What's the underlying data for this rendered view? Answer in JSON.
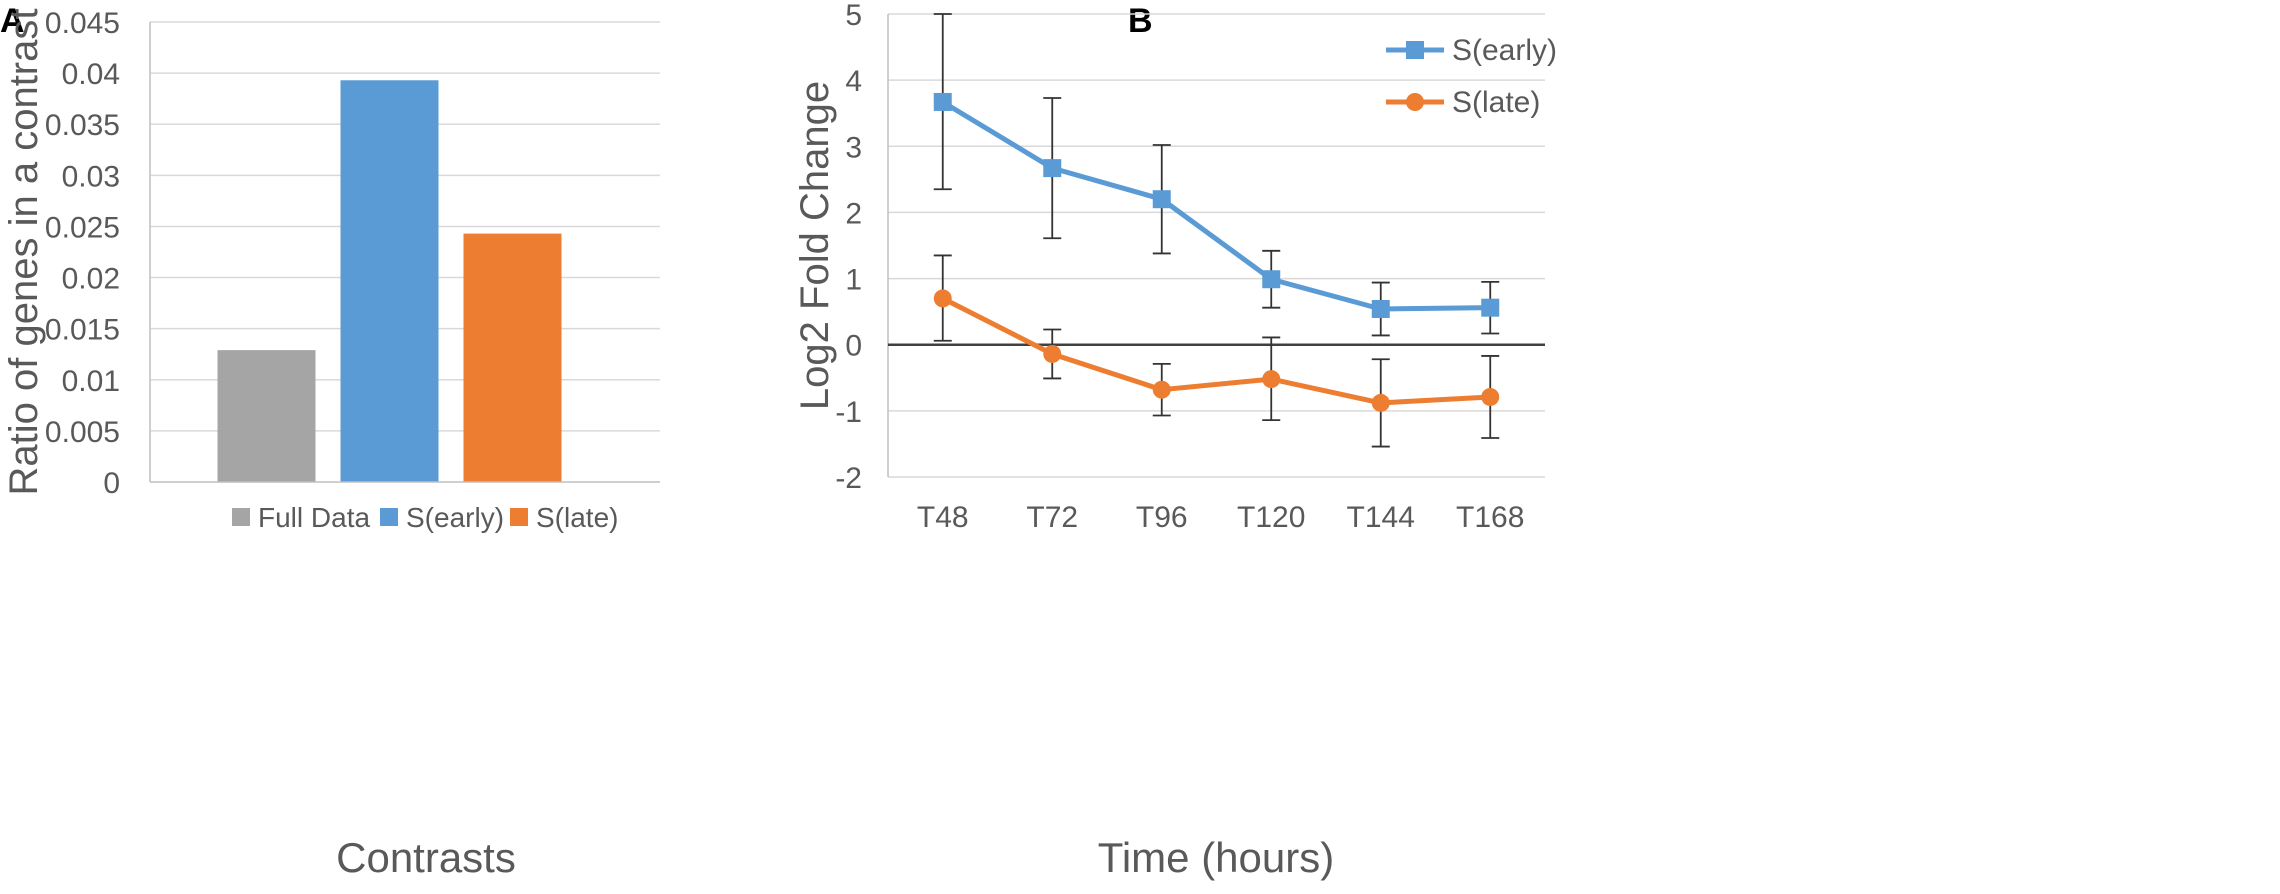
{
  "panels": {
    "a": "A",
    "b": "B"
  },
  "colors": {
    "grid": "#d9d9d9",
    "axis": "#bfbfbf",
    "text": "#595959",
    "zero_line": "#404040",
    "error_bar": "#333333"
  },
  "chart_data": [
    {
      "type": "bar",
      "panel": "A",
      "title": "",
      "xlabel": "Contrasts",
      "ylabel": "Ratio of genes in a contrast",
      "ylim": [
        0,
        0.045
      ],
      "yticks": [
        0,
        0.005,
        0.01,
        0.015,
        0.02,
        0.025,
        0.03,
        0.035,
        0.04,
        0.045
      ],
      "ytick_labels": [
        "0",
        "0.005",
        "0.01",
        "0.015",
        "0.02",
        "0.025",
        "0.03",
        "0.035",
        "0.04",
        "0.045"
      ],
      "grid": true,
      "legend_position": "bottom",
      "categories": [
        "Full Data",
        "S(early)",
        "S(late)"
      ],
      "values": [
        0.0129,
        0.0393,
        0.0243
      ],
      "bar_colors": [
        "#a5a5a5",
        "#5b9bd5",
        "#ed7d31"
      ]
    },
    {
      "type": "line",
      "panel": "B",
      "title": "",
      "xlabel": "Time (hours)",
      "ylabel": "Log2 Fold Change",
      "ylim": [
        -2,
        5
      ],
      "yticks": [
        -2,
        -1,
        0,
        1,
        2,
        3,
        4,
        5
      ],
      "ytick_labels": [
        "-2",
        "-1",
        "0",
        "1",
        "2",
        "3",
        "4",
        "5"
      ],
      "grid": true,
      "legend_position": "top-right",
      "x": [
        "T48",
        "T72",
        "T96",
        "T120",
        "T144",
        "T168"
      ],
      "series": [
        {
          "name": "S(early)",
          "color": "#5b9bd5",
          "marker": "square",
          "values": [
            3.67,
            2.67,
            2.2,
            0.99,
            0.54,
            0.56
          ],
          "error_low": [
            2.35,
            1.61,
            1.38,
            0.56,
            0.14,
            0.17
          ],
          "error_high": [
            5.0,
            3.73,
            3.02,
            1.42,
            0.94,
            0.95
          ]
        },
        {
          "name": "S(late)",
          "color": "#ed7d31",
          "marker": "circle",
          "values": [
            0.7,
            -0.14,
            -0.68,
            -0.52,
            -0.88,
            -0.79
          ],
          "error_low": [
            0.06,
            -0.51,
            -1.07,
            -1.14,
            -1.54,
            -1.41
          ],
          "error_high": [
            1.35,
            0.23,
            -0.29,
            0.11,
            -0.22,
            -0.17
          ]
        }
      ]
    }
  ]
}
